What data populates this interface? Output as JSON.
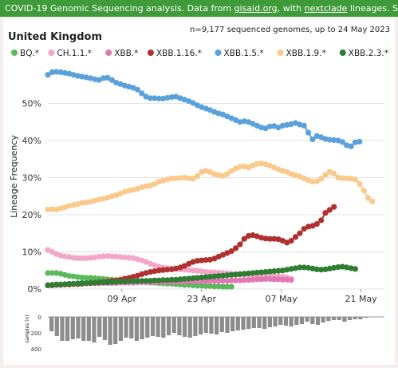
{
  "banner": {
    "part1": "COVID-19 Genomic Sequencing analysis. Data from ",
    "link1": "gisaid.org",
    "part2": ", with ",
    "link2": "nextclade",
    "part3": " lineages. Source files and more info"
  },
  "chart_data": {
    "type": "line",
    "title": "United Kingdom",
    "subtitle": "n=9,177 sequenced genomes, up to 24 May 2023",
    "ylabel": "Lineage Frequency",
    "ylim": [
      0,
      0.6
    ],
    "yticks": [
      0,
      0.1,
      0.2,
      0.3,
      0.4,
      0.5
    ],
    "ytick_labels": [
      "0%",
      "10%",
      "20%",
      "30%",
      "40%",
      "50%"
    ],
    "x_range": [
      "2023-03-27",
      "2023-05-24"
    ],
    "xticks": [
      "2023-04-09",
      "2023-04-23",
      "2023-05-07",
      "2023-05-21"
    ],
    "xtick_labels": [
      "09 Apr",
      "23 Apr",
      "07 May",
      "21 May"
    ],
    "legend_position": "top",
    "series": [
      {
        "name": "BQ.*",
        "color": "#5cb85c",
        "start": "2023-03-27",
        "values": [
          0.043,
          0.043,
          0.043,
          0.041,
          0.038,
          0.035,
          0.034,
          0.032,
          0.031,
          0.03,
          0.03,
          0.029,
          0.028,
          0.027,
          0.026,
          0.025,
          0.024,
          0.023,
          0.022,
          0.021,
          0.02,
          0.02,
          0.019,
          0.018,
          0.017,
          0.017,
          0.016,
          0.015,
          0.014,
          0.014,
          0.013,
          0.012,
          0.011,
          0.011,
          0.01,
          0.009,
          0.009,
          0.008,
          0.008,
          0.007,
          0.007,
          0.006,
          0.006,
          0.006
        ]
      },
      {
        "name": "CH.1.1.*",
        "color": "#f4a6c8",
        "start": "2023-03-27",
        "values": [
          0.105,
          0.1,
          0.094,
          0.09,
          0.088,
          0.086,
          0.084,
          0.083,
          0.083,
          0.083,
          0.084,
          0.085,
          0.087,
          0.088,
          0.089,
          0.088,
          0.087,
          0.086,
          0.085,
          0.084,
          0.083,
          0.08,
          0.077,
          0.073,
          0.068,
          0.064,
          0.06,
          0.058,
          0.056,
          0.055,
          0.054,
          0.053,
          0.052,
          0.051,
          0.05,
          0.049,
          0.048,
          0.046,
          0.045,
          0.045,
          0.044,
          0.043,
          0.042,
          0.041,
          0.04,
          0.039,
          0.039,
          0.038,
          0.038,
          0.037,
          0.037,
          0.036,
          0.035,
          0.034,
          0.034,
          0.033,
          0.031,
          0.027
        ]
      },
      {
        "name": "XBB.*",
        "color": "#e377b4",
        "start": "2023-03-27",
        "values": [
          0.01,
          0.011,
          0.012,
          0.012,
          0.013,
          0.013,
          0.014,
          0.014,
          0.014,
          0.015,
          0.015,
          0.015,
          0.015,
          0.016,
          0.016,
          0.016,
          0.016,
          0.017,
          0.017,
          0.017,
          0.017,
          0.018,
          0.018,
          0.018,
          0.018,
          0.019,
          0.019,
          0.019,
          0.019,
          0.019,
          0.02,
          0.02,
          0.02,
          0.021,
          0.021,
          0.021,
          0.021,
          0.021,
          0.021,
          0.022,
          0.022,
          0.022,
          0.022,
          0.023,
          0.023,
          0.023,
          0.024,
          0.024,
          0.025,
          0.026,
          0.026,
          0.027,
          0.027,
          0.026,
          0.026,
          0.025,
          0.025,
          0.024
        ]
      },
      {
        "name": "XBB.1.16.*",
        "color": "#b03030",
        "start": "2023-03-27",
        "values": [
          0.01,
          0.01,
          0.011,
          0.011,
          0.012,
          0.012,
          0.013,
          0.013,
          0.014,
          0.015,
          0.016,
          0.017,
          0.018,
          0.019,
          0.02,
          0.022,
          0.023,
          0.025,
          0.028,
          0.03,
          0.033,
          0.036,
          0.04,
          0.043,
          0.046,
          0.048,
          0.05,
          0.051,
          0.052,
          0.053,
          0.055,
          0.058,
          0.062,
          0.068,
          0.073,
          0.076,
          0.077,
          0.078,
          0.079,
          0.082,
          0.087,
          0.092,
          0.097,
          0.102,
          0.11,
          0.12,
          0.135,
          0.143,
          0.145,
          0.142,
          0.138,
          0.136,
          0.135,
          0.135,
          0.134,
          0.13,
          0.125,
          0.13,
          0.14,
          0.15,
          0.162,
          0.168,
          0.17,
          0.175,
          0.185,
          0.205,
          0.213,
          0.221
        ]
      },
      {
        "name": "XBB.1.5.*",
        "color": "#5aa1dc",
        "start": "2023-03-27",
        "values": [
          0.577,
          0.584,
          0.585,
          0.584,
          0.582,
          0.58,
          0.577,
          0.574,
          0.572,
          0.57,
          0.568,
          0.565,
          0.563,
          0.568,
          0.569,
          0.563,
          0.556,
          0.552,
          0.548,
          0.545,
          0.542,
          0.537,
          0.527,
          0.518,
          0.514,
          0.514,
          0.513,
          0.513,
          0.515,
          0.517,
          0.518,
          0.514,
          0.51,
          0.506,
          0.501,
          0.495,
          0.49,
          0.486,
          0.482,
          0.477,
          0.473,
          0.47,
          0.465,
          0.46,
          0.455,
          0.45,
          0.452,
          0.45,
          0.445,
          0.44,
          0.435,
          0.433,
          0.438,
          0.439,
          0.435,
          0.44,
          0.442,
          0.444,
          0.447,
          0.443,
          0.44,
          0.421,
          0.403,
          0.412,
          0.409,
          0.404,
          0.402,
          0.401,
          0.4,
          0.396,
          0.387,
          0.384,
          0.395,
          0.397
        ]
      },
      {
        "name": "XBB.1.9.*",
        "color": "#fbc98c",
        "start": "2023-03-27",
        "values": [
          0.214,
          0.215,
          0.214,
          0.217,
          0.22,
          0.224,
          0.226,
          0.229,
          0.232,
          0.233,
          0.235,
          0.238,
          0.241,
          0.243,
          0.246,
          0.25,
          0.253,
          0.257,
          0.262,
          0.265,
          0.267,
          0.27,
          0.274,
          0.277,
          0.279,
          0.283,
          0.289,
          0.292,
          0.295,
          0.298,
          0.298,
          0.299,
          0.3,
          0.298,
          0.297,
          0.304,
          0.315,
          0.318,
          0.315,
          0.309,
          0.307,
          0.305,
          0.31,
          0.318,
          0.325,
          0.329,
          0.33,
          0.327,
          0.333,
          0.337,
          0.338,
          0.336,
          0.332,
          0.327,
          0.322,
          0.318,
          0.315,
          0.31,
          0.306,
          0.303,
          0.298,
          0.293,
          0.289,
          0.29,
          0.297,
          0.307,
          0.316,
          0.311,
          0.3,
          0.298,
          0.298,
          0.297,
          0.295,
          0.283,
          0.265,
          0.245,
          0.236
        ]
      },
      {
        "name": "XBB.2.3.*",
        "color": "#2e7d32",
        "start": "2023-03-27",
        "values": [
          0.01,
          0.011,
          0.012,
          0.012,
          0.013,
          0.014,
          0.014,
          0.015,
          0.016,
          0.016,
          0.017,
          0.017,
          0.018,
          0.018,
          0.018,
          0.019,
          0.019,
          0.02,
          0.02,
          0.021,
          0.021,
          0.021,
          0.022,
          0.022,
          0.022,
          0.023,
          0.023,
          0.024,
          0.024,
          0.025,
          0.025,
          0.026,
          0.027,
          0.028,
          0.029,
          0.03,
          0.031,
          0.032,
          0.033,
          0.034,
          0.035,
          0.036,
          0.037,
          0.038,
          0.039,
          0.04,
          0.041,
          0.042,
          0.043,
          0.044,
          0.045,
          0.046,
          0.047,
          0.048,
          0.049,
          0.05,
          0.052,
          0.054,
          0.056,
          0.058,
          0.058,
          0.057,
          0.055,
          0.053,
          0.052,
          0.053,
          0.055,
          0.057,
          0.059,
          0.06,
          0.058,
          0.056,
          0.054
        ]
      }
    ],
    "samples": {
      "label": "samples (n)",
      "yticks": [
        0,
        200,
        400
      ],
      "ylim": [
        0,
        400
      ],
      "start": "2023-03-27",
      "values": [
        180,
        240,
        300,
        300,
        280,
        270,
        300,
        300,
        320,
        250,
        290,
        350,
        340,
        300,
        260,
        270,
        300,
        280,
        260,
        240,
        250,
        260,
        230,
        200,
        230,
        250,
        260,
        240,
        220,
        200,
        210,
        220,
        190,
        200,
        180,
        170,
        160,
        150,
        140,
        140,
        150,
        130,
        120,
        100,
        110,
        120,
        100,
        90,
        60,
        90,
        100,
        70,
        50,
        40,
        40,
        60,
        40,
        30,
        30,
        10,
        5
      ]
    }
  }
}
